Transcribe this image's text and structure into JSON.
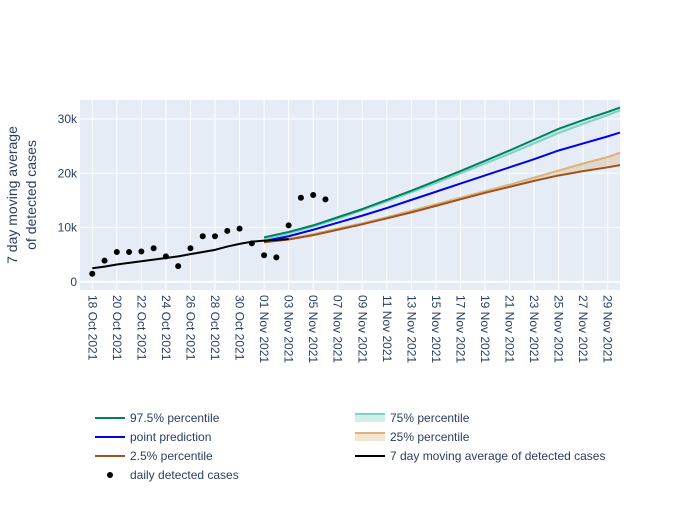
{
  "chart_data": {
    "type": "line",
    "xlabel": "",
    "ylabel_lines": [
      "7 day moving average",
      "of detected cases"
    ],
    "xlim": [
      "2021-10-17",
      "2021-11-30"
    ],
    "ylim": [
      -1500,
      33500
    ],
    "grid": true,
    "legend_position": "bottom",
    "yticks": [
      {
        "value": 0,
        "label": "0"
      },
      {
        "value": 10000,
        "label": "10k"
      },
      {
        "value": 20000,
        "label": "20k"
      },
      {
        "value": 30000,
        "label": "30k"
      }
    ],
    "xticks": [
      {
        "date": "2021-10-18",
        "label": "18 Oct 2021"
      },
      {
        "date": "2021-10-20",
        "label": "20 Oct 2021"
      },
      {
        "date": "2021-10-22",
        "label": "22 Oct 2021"
      },
      {
        "date": "2021-10-24",
        "label": "24 Oct 2021"
      },
      {
        "date": "2021-10-26",
        "label": "26 Oct 2021"
      },
      {
        "date": "2021-10-28",
        "label": "28 Oct 2021"
      },
      {
        "date": "2021-10-30",
        "label": "30 Oct 2021"
      },
      {
        "date": "2021-11-01",
        "label": "01 Nov 2021"
      },
      {
        "date": "2021-11-03",
        "label": "03 Nov 2021"
      },
      {
        "date": "2021-11-05",
        "label": "05 Nov 2021"
      },
      {
        "date": "2021-11-07",
        "label": "07 Nov 2021"
      },
      {
        "date": "2021-11-09",
        "label": "09 Nov 2021"
      },
      {
        "date": "2021-11-11",
        "label": "11 Nov 2021"
      },
      {
        "date": "2021-11-13",
        "label": "13 Nov 2021"
      },
      {
        "date": "2021-11-15",
        "label": "15 Nov 2021"
      },
      {
        "date": "2021-11-17",
        "label": "17 Nov 2021"
      },
      {
        "date": "2021-11-19",
        "label": "19 Nov 2021"
      },
      {
        "date": "2021-11-21",
        "label": "21 Nov 2021"
      },
      {
        "date": "2021-11-23",
        "label": "23 Nov 2021"
      },
      {
        "date": "2021-11-25",
        "label": "25 Nov 2021"
      },
      {
        "date": "2021-11-27",
        "label": "27 Nov 2021"
      },
      {
        "date": "2021-11-29",
        "label": "29 Nov 2021"
      }
    ],
    "colors": {
      "plot_bg": "#e5ecf6",
      "grid": "#ffffff",
      "p975": "#00805e",
      "p75": "#7fd3c6",
      "p75_fill": "rgba(127,211,198,0.35)",
      "point": "#0000ee",
      "p25": "#dbb47a",
      "p25_fill": "rgba(219,180,122,0.35)",
      "p025": "#a0521d",
      "moving_avg": "#000000",
      "daily": "#000000"
    },
    "series": [
      {
        "key": "p975",
        "name": "97.5% percentile",
        "x": [
          "2021-11-01",
          "2021-11-03",
          "2021-11-05",
          "2021-11-07",
          "2021-11-09",
          "2021-11-11",
          "2021-11-13",
          "2021-11-15",
          "2021-11-17",
          "2021-11-19",
          "2021-11-21",
          "2021-11-23",
          "2021-11-25",
          "2021-11-27",
          "2021-11-29",
          "2021-11-30"
        ],
        "y": [
          8200,
          9200,
          10400,
          11900,
          13400,
          15100,
          16800,
          18600,
          20400,
          22300,
          24200,
          26200,
          28200,
          29800,
          31300,
          32100
        ]
      },
      {
        "key": "p75",
        "name": "75% percentile",
        "x": [
          "2021-11-01",
          "2021-11-03",
          "2021-11-05",
          "2021-11-07",
          "2021-11-09",
          "2021-11-11",
          "2021-11-13",
          "2021-11-15",
          "2021-11-17",
          "2021-11-19",
          "2021-11-21",
          "2021-11-23",
          "2021-11-25",
          "2021-11-27",
          "2021-11-29",
          "2021-11-30"
        ],
        "y": [
          7800,
          8900,
          10200,
          11600,
          13200,
          14800,
          16500,
          18200,
          20000,
          21800,
          23600,
          25500,
          27400,
          29100,
          30700,
          31600
        ]
      },
      {
        "key": "point",
        "name": "point prediction",
        "x": [
          "2021-11-01",
          "2021-11-03",
          "2021-11-05",
          "2021-11-07",
          "2021-11-09",
          "2021-11-11",
          "2021-11-13",
          "2021-11-15",
          "2021-11-17",
          "2021-11-19",
          "2021-11-21",
          "2021-11-23",
          "2021-11-25",
          "2021-11-27",
          "2021-11-29",
          "2021-11-30"
        ],
        "y": [
          7500,
          8400,
          9600,
          10900,
          12200,
          13600,
          15100,
          16600,
          18100,
          19600,
          21100,
          22600,
          24200,
          25500,
          26800,
          27500
        ]
      },
      {
        "key": "p25",
        "name": "25% percentile",
        "x": [
          "2021-11-01",
          "2021-11-03",
          "2021-11-05",
          "2021-11-07",
          "2021-11-09",
          "2021-11-11",
          "2021-11-13",
          "2021-11-15",
          "2021-11-17",
          "2021-11-19",
          "2021-11-21",
          "2021-11-23",
          "2021-11-25",
          "2021-11-27",
          "2021-11-29",
          "2021-11-30"
        ],
        "y": [
          7300,
          7900,
          8800,
          9800,
          10800,
          11900,
          13100,
          14300,
          15500,
          16700,
          17900,
          19200,
          20500,
          21800,
          23000,
          23800
        ]
      },
      {
        "key": "p025",
        "name": "2.5% percentile",
        "x": [
          "2021-11-01",
          "2021-11-03",
          "2021-11-05",
          "2021-11-07",
          "2021-11-09",
          "2021-11-11",
          "2021-11-13",
          "2021-11-15",
          "2021-11-17",
          "2021-11-19",
          "2021-11-21",
          "2021-11-23",
          "2021-11-25",
          "2021-11-27",
          "2021-11-29",
          "2021-11-30"
        ],
        "y": [
          7300,
          7800,
          8600,
          9600,
          10600,
          11700,
          12800,
          14000,
          15200,
          16400,
          17500,
          18600,
          19600,
          20400,
          21100,
          21500
        ]
      },
      {
        "key": "moving_avg",
        "name": "7 day moving average of detected cases",
        "x": [
          "2021-10-18",
          "2021-10-19",
          "2021-10-20",
          "2021-10-21",
          "2021-10-22",
          "2021-10-23",
          "2021-10-24",
          "2021-10-25",
          "2021-10-26",
          "2021-10-27",
          "2021-10-28",
          "2021-10-29",
          "2021-10-30",
          "2021-10-31",
          "2021-11-01",
          "2021-11-02",
          "2021-11-03"
        ],
        "y": [
          2500,
          2800,
          3200,
          3500,
          3800,
          4100,
          4400,
          4700,
          5100,
          5500,
          5900,
          6500,
          7000,
          7400,
          7600,
          7700,
          7900
        ]
      }
    ],
    "daily": {
      "name": "daily detected cases",
      "x": [
        "2021-10-18",
        "2021-10-19",
        "2021-10-20",
        "2021-10-21",
        "2021-10-22",
        "2021-10-23",
        "2021-10-24",
        "2021-10-25",
        "2021-10-26",
        "2021-10-27",
        "2021-10-28",
        "2021-10-29",
        "2021-10-30",
        "2021-10-31",
        "2021-11-01",
        "2021-11-02",
        "2021-11-03",
        "2021-11-04",
        "2021-11-05",
        "2021-11-06"
      ],
      "y": [
        1500,
        3900,
        5500,
        5500,
        5600,
        6200,
        4700,
        2900,
        6200,
        8400,
        8400,
        9400,
        9800,
        7100,
        4900,
        4500,
        10400,
        15500,
        16000,
        15200
      ]
    },
    "legend": [
      {
        "key": "p975",
        "label": "97.5% percentile",
        "kind": "line"
      },
      {
        "key": "p75",
        "label": "75% percentile",
        "kind": "band"
      },
      {
        "key": "point",
        "label": "point prediction",
        "kind": "line"
      },
      {
        "key": "p25",
        "label": "25% percentile",
        "kind": "band"
      },
      {
        "key": "p025",
        "label": "2.5% percentile",
        "kind": "line"
      },
      {
        "key": "moving_avg",
        "label": "7 day moving average of detected cases",
        "kind": "line"
      },
      {
        "key": "daily",
        "label": "daily detected cases",
        "kind": "marker"
      }
    ]
  }
}
